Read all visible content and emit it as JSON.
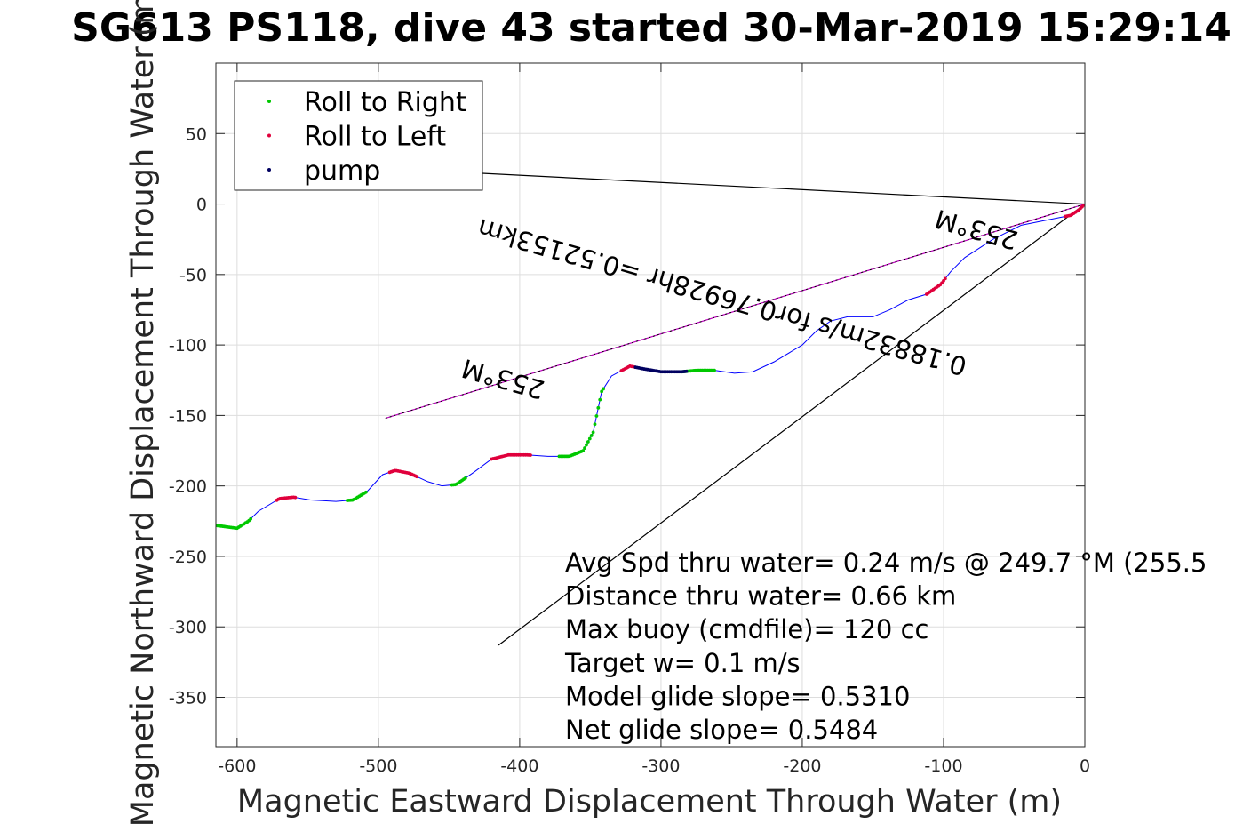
{
  "chart_data": {
    "type": "line",
    "title": "SG613 PS118, dive 43 started 30-Mar-2019 15:29:14",
    "xlabel": "Magnetic Eastward Displacement Through Water (m)",
    "ylabel": "Magnetic Northward Displacement Through Water (m)",
    "xlim": [
      -615,
      0
    ],
    "ylim": [
      -385,
      100
    ],
    "xticks": [
      -600,
      -500,
      -400,
      -300,
      -200,
      -100,
      0
    ],
    "yticks": [
      -350,
      -300,
      -250,
      -200,
      -150,
      -100,
      -50,
      0,
      50
    ],
    "grid": true,
    "legend": {
      "placement": "top-left",
      "entries": [
        {
          "name": "Roll to Right",
          "color": "#00c800",
          "marker": "dot"
        },
        {
          "name": "Roll to Left",
          "color": "#e0003c",
          "marker": "dot"
        },
        {
          "name": "pump",
          "color": "#000060",
          "marker": "dot"
        }
      ]
    },
    "track": {
      "color": "#0000ff",
      "points": [
        [
          -615,
          -228
        ],
        [
          -600,
          -230
        ],
        [
          -592,
          -225
        ],
        [
          -585,
          -218
        ],
        [
          -570,
          -209
        ],
        [
          -560,
          -208
        ],
        [
          -548,
          -210
        ],
        [
          -530,
          -211
        ],
        [
          -518,
          -210
        ],
        [
          -508,
          -204
        ],
        [
          -497,
          -192
        ],
        [
          -488,
          -189
        ],
        [
          -478,
          -191
        ],
        [
          -465,
          -197
        ],
        [
          -455,
          -200
        ],
        [
          -445,
          -199
        ],
        [
          -432,
          -190
        ],
        [
          -420,
          -181
        ],
        [
          -408,
          -178
        ],
        [
          -395,
          -178
        ],
        [
          -380,
          -179
        ],
        [
          -365,
          -179
        ],
        [
          -355,
          -175
        ],
        [
          -348,
          -162
        ],
        [
          -342,
          -133
        ],
        [
          -335,
          -122
        ],
        [
          -322,
          -115
        ],
        [
          -312,
          -117
        ],
        [
          -300,
          -119
        ],
        [
          -285,
          -119
        ],
        [
          -275,
          -118
        ],
        [
          -262,
          -118
        ],
        [
          -248,
          -120
        ],
        [
          -235,
          -119
        ],
        [
          -220,
          -112
        ],
        [
          -200,
          -100
        ],
        [
          -190,
          -90
        ],
        [
          -180,
          -83
        ],
        [
          -168,
          -80
        ],
        [
          -150,
          -80
        ],
        [
          -138,
          -75
        ],
        [
          -125,
          -68
        ],
        [
          -112,
          -64
        ],
        [
          -102,
          -57
        ],
        [
          -95,
          -48
        ],
        [
          -85,
          -38
        ],
        [
          -65,
          -25
        ],
        [
          -45,
          -15
        ],
        [
          -25,
          -11
        ],
        [
          -10,
          -8
        ],
        [
          -4,
          -4
        ],
        [
          0,
          0
        ]
      ]
    },
    "roll_right_segments": [
      [
        -615,
        -600
      ],
      [
        -600,
        -590
      ],
      [
        -522,
        -508
      ],
      [
        -448,
        -438
      ],
      [
        -372,
        -340
      ],
      [
        -285,
        -262
      ]
    ],
    "roll_left_segments": [
      [
        -572,
        -558
      ],
      [
        -492,
        -472
      ],
      [
        -420,
        -392
      ],
      [
        -328,
        -318
      ],
      [
        -112,
        -98
      ],
      [
        -14,
        0
      ]
    ],
    "pump_segments": [
      [
        -318,
        -282
      ]
    ],
    "lines": [
      {
        "name": "net-heading-line",
        "color": "#c000c0",
        "points": [
          [
            -495,
            -152
          ],
          [
            0,
            0
          ]
        ]
      },
      {
        "name": "heading-line-upper",
        "color": "#000000",
        "points": [
          [
            -470,
            24
          ],
          [
            0,
            0
          ]
        ]
      },
      {
        "name": "heading-line-lower",
        "color": "#000000",
        "points": [
          [
            -415,
            -313
          ],
          [
            0,
            0
          ]
        ]
      }
    ],
    "annotations": [
      {
        "text": "253°M",
        "anchor": [
          -410,
          -118
        ],
        "rotation": 196
      },
      {
        "text": "253°M",
        "anchor": [
          -75,
          -12
        ],
        "rotation": 196
      },
      {
        "text": "0.18832m/s for0.76928hr =0.52153km",
        "anchor": [
          -255,
          -60
        ],
        "rotation": 196
      }
    ],
    "stats": [
      "Avg Spd thru water=  0.24 m/s @ 249.7 °M (255.5",
      "Distance thru water=  0.66 km",
      "Max buoy (cmdfile)= 120 cc",
      "Target w= 0.1 m/s",
      "Model glide slope= 0.5310",
      "Net glide slope= 0.5484"
    ]
  }
}
